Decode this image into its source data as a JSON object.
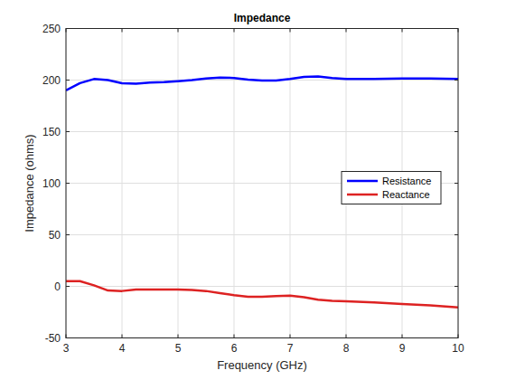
{
  "chart_data": {
    "type": "line",
    "title": "Impedance",
    "x_label": "Frequency (GHz)",
    "y_label": "Impedance (ohms)",
    "x": [
      3,
      3.25,
      3.5,
      3.75,
      4,
      4.25,
      4.5,
      4.75,
      5,
      5.25,
      5.5,
      5.75,
      6,
      6.25,
      6.5,
      6.75,
      7,
      7.25,
      7.5,
      7.75,
      8,
      8.5,
      9,
      9.5,
      10
    ],
    "series": [
      {
        "name": "Resistance",
        "color": "#0000ff",
        "values": [
          190,
          197,
          201,
          200,
          197,
          196.5,
          197.5,
          198,
          199,
          200,
          201.5,
          202.5,
          202,
          200.5,
          199.5,
          199.5,
          201,
          203,
          203.5,
          202,
          201,
          201,
          201.5,
          201.5,
          201
        ]
      },
      {
        "name": "Reactance",
        "color": "#dd2222",
        "values": [
          5,
          5,
          1,
          -4,
          -4.5,
          -3,
          -3,
          -3,
          -3,
          -3.5,
          -4.5,
          -6.5,
          -8.5,
          -10,
          -10,
          -9.5,
          -9,
          -10.5,
          -13,
          -14,
          -14.5,
          -15.5,
          -17,
          -18.5,
          -20.5
        ]
      }
    ],
    "xlim": [
      3,
      10
    ],
    "xticks": [
      3,
      4,
      5,
      6,
      7,
      8,
      9,
      10
    ],
    "ylim": [
      -50,
      250
    ],
    "yticks": [
      -50,
      0,
      50,
      100,
      150,
      200,
      250
    ],
    "grid": true,
    "legend": "east"
  }
}
